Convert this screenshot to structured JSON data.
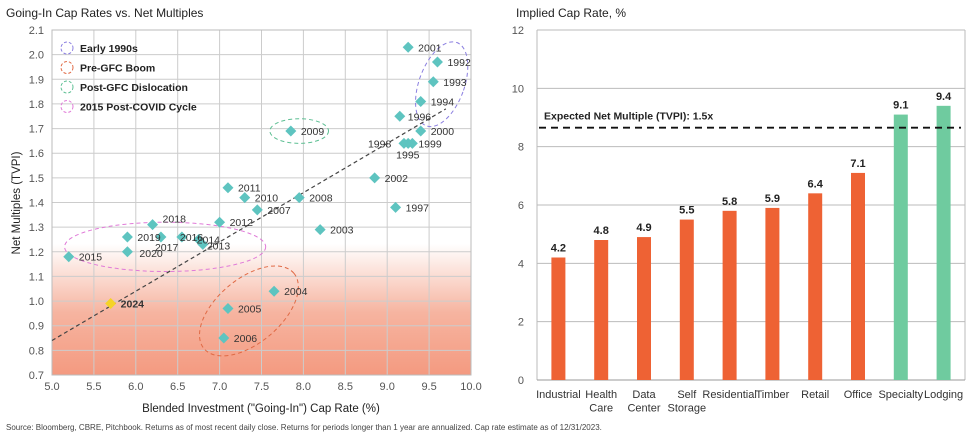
{
  "source_note": "Source: Bloomberg, CBRE, Pitchbook. Returns as of most recent daily close. Returns for periods longer than 1 year are annualized. Cap rate estimate as of 12/31/2023.",
  "colors": {
    "point": "#5EC4C0",
    "highlight_point": "#F5D327",
    "trend": "#444444",
    "bar_orange": "#EE6234",
    "bar_green": "#6FCB9F",
    "gradient_low": "#F49A80",
    "grid": "#CCCCCC"
  },
  "chart_data": [
    {
      "type": "scatter",
      "title": "Going-In Cap Rates vs. Net Multiples",
      "xlabel": "Blended Investment (\"Going-In\") Cap Rate (%)",
      "ylabel": "Net Multiples (TVPI)",
      "xlim": [
        5.0,
        10.0
      ],
      "ylim": [
        0.7,
        2.1
      ],
      "xticks": [
        "5.0",
        "5.5",
        "6.0",
        "6.5",
        "7.0",
        "7.5",
        "8.0",
        "8.5",
        "9.0",
        "9.5",
        "10.0"
      ],
      "yticks": [
        "0.7",
        "0.8",
        "0.9",
        "1.0",
        "1.1",
        "1.2",
        "1.3",
        "1.4",
        "1.5",
        "1.6",
        "1.7",
        "1.8",
        "1.9",
        "2.0",
        "2.1"
      ],
      "grid": true,
      "legend_position": "top-left",
      "legend": [
        {
          "label": "Early 1990s",
          "color": "#8A7EE0"
        },
        {
          "label": "Pre-GFC Boom",
          "color": "#E06A45"
        },
        {
          "label": "Post-GFC Dislocation",
          "color": "#5DBF93"
        },
        {
          "label": "2015 Post-COVID Cycle",
          "color": "#E07AD8"
        }
      ],
      "points": [
        {
          "label": "1992",
          "x": 9.6,
          "y": 1.97
        },
        {
          "label": "1993",
          "x": 9.55,
          "y": 1.89
        },
        {
          "label": "1994",
          "x": 9.4,
          "y": 1.81
        },
        {
          "label": "1995",
          "x": 9.25,
          "y": 1.64
        },
        {
          "label": "1996",
          "x": 9.15,
          "y": 1.75
        },
        {
          "label": "1997",
          "x": 9.1,
          "y": 1.38
        },
        {
          "label": "1998",
          "x": 9.2,
          "y": 1.64
        },
        {
          "label": "1999",
          "x": 9.3,
          "y": 1.64
        },
        {
          "label": "2000",
          "x": 9.4,
          "y": 1.69
        },
        {
          "label": "2001",
          "x": 9.25,
          "y": 2.03
        },
        {
          "label": "2002",
          "x": 8.85,
          "y": 1.5
        },
        {
          "label": "2003",
          "x": 8.2,
          "y": 1.29
        },
        {
          "label": "2004",
          "x": 7.65,
          "y": 1.04
        },
        {
          "label": "2005",
          "x": 7.1,
          "y": 0.97
        },
        {
          "label": "2006",
          "x": 7.05,
          "y": 0.85
        },
        {
          "label": "2007",
          "x": 7.45,
          "y": 1.37
        },
        {
          "label": "2008",
          "x": 7.95,
          "y": 1.42
        },
        {
          "label": "2009",
          "x": 7.85,
          "y": 1.69
        },
        {
          "label": "2010",
          "x": 7.3,
          "y": 1.42
        },
        {
          "label": "2011",
          "x": 7.1,
          "y": 1.46
        },
        {
          "label": "2012",
          "x": 7.0,
          "y": 1.32
        },
        {
          "label": "2013",
          "x": 6.8,
          "y": 1.23
        },
        {
          "label": "2014",
          "x": 6.75,
          "y": 1.25
        },
        {
          "label": "2015",
          "x": 5.2,
          "y": 1.18
        },
        {
          "label": "2016",
          "x": 6.55,
          "y": 1.26
        },
        {
          "label": "2017",
          "x": 6.3,
          "y": 1.26
        },
        {
          "label": "2018",
          "x": 6.2,
          "y": 1.31
        },
        {
          "label": "2019",
          "x": 5.9,
          "y": 1.26
        },
        {
          "label": "2020",
          "x": 5.9,
          "y": 1.2
        },
        {
          "label": "2024",
          "x": 5.7,
          "y": 0.99,
          "highlight": true
        }
      ],
      "trendline": {
        "x": [
          5.0,
          9.7
        ],
        "y": [
          0.84,
          1.78
        ]
      },
      "ellipses": [
        {
          "group": "Early 1990s",
          "cx": 9.65,
          "cy": 1.88,
          "rx": 0.27,
          "ry": 0.18,
          "angle": 20
        },
        {
          "group": "Pre-GFC Boom",
          "cx": 7.35,
          "cy": 0.96,
          "rx": 0.7,
          "ry": 0.13,
          "angle": -40
        },
        {
          "group": "Post-GFC Dislocation",
          "cx": 7.95,
          "cy": 1.69,
          "rx": 0.35,
          "ry": 0.05,
          "angle": 0
        },
        {
          "group": "2015 Post-COVID Cycle",
          "cx": 6.35,
          "cy": 1.22,
          "rx": 1.2,
          "ry": 0.1,
          "angle": 0
        }
      ]
    },
    {
      "type": "bar",
      "title": "Implied Cap Rate, %",
      "xlabel": "",
      "ylabel": "",
      "ylim": [
        0,
        12
      ],
      "yticks": [
        "0",
        "2",
        "4",
        "6",
        "8",
        "10",
        "12"
      ],
      "grid": true,
      "categories": [
        [
          "Industrial"
        ],
        [
          "Health",
          "Care"
        ],
        [
          "Data",
          "Center"
        ],
        [
          "Self",
          "Storage"
        ],
        [
          "Residential"
        ],
        [
          "Timber"
        ],
        [
          "Retail"
        ],
        [
          "Office"
        ],
        [
          "Specialty"
        ],
        [
          "Lodging"
        ]
      ],
      "values": [
        4.2,
        4.8,
        4.9,
        5.5,
        5.8,
        5.9,
        6.4,
        7.1,
        9.1,
        9.4
      ],
      "value_labels": [
        "4.2",
        "4.8",
        "4.9",
        "5.5",
        "5.8",
        "5.9",
        "6.4",
        "7.1",
        "9.1",
        "9.4"
      ],
      "bar_colors": [
        "orange",
        "orange",
        "orange",
        "orange",
        "orange",
        "orange",
        "orange",
        "orange",
        "green",
        "green"
      ],
      "reference_line": {
        "value": 8.65,
        "label": "Expected Net Multiple (TVPI): 1.5x",
        "style": "dashed"
      }
    }
  ]
}
